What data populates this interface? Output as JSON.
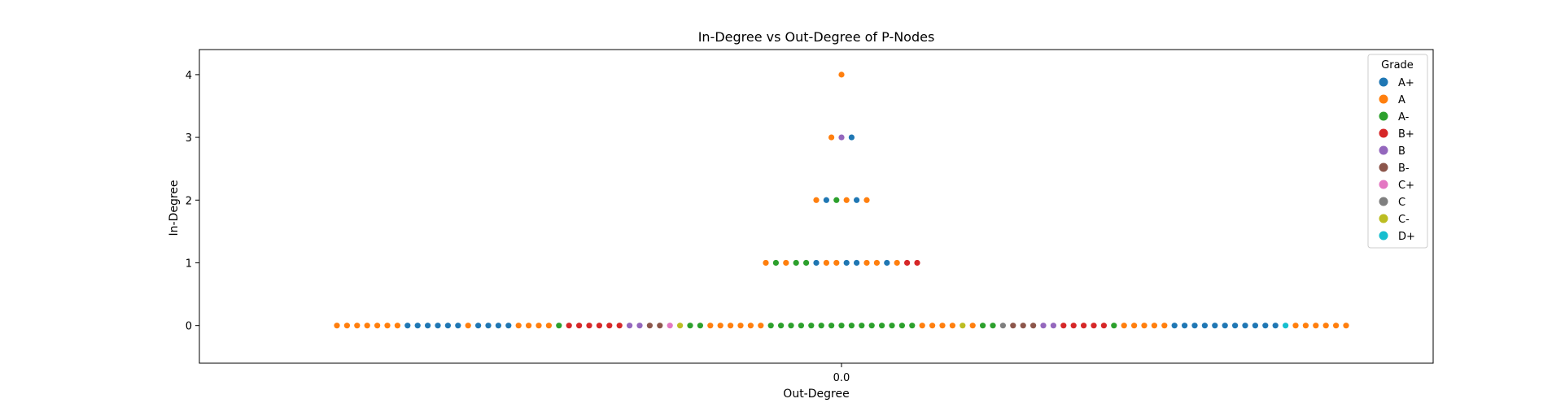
{
  "chart_data": {
    "type": "scatter",
    "title": "In-Degree vs Out-Degree of P-Nodes",
    "xlabel": "Out-Degree",
    "ylabel": "In-Degree",
    "x_ticks": [
      "0.0"
    ],
    "y_ticks": [
      0,
      1,
      2,
      3,
      4
    ],
    "ylim": [
      -0.6,
      4.4
    ],
    "legend": {
      "title": "Grade",
      "placement": "top-right",
      "entries": [
        {
          "label": "A+",
          "color": "#1f77b4"
        },
        {
          "label": "A",
          "color": "#ff7f0e"
        },
        {
          "label": "A-",
          "color": "#2ca02c"
        },
        {
          "label": "B+",
          "color": "#d62728"
        },
        {
          "label": "B",
          "color": "#9467bd"
        },
        {
          "label": "B-",
          "color": "#8c564b"
        },
        {
          "label": "C+",
          "color": "#e377c2"
        },
        {
          "label": "C",
          "color": "#7f7f7f"
        },
        {
          "label": "C-",
          "color": "#bcbd22"
        },
        {
          "label": "D+",
          "color": "#17becf"
        }
      ]
    },
    "points_by_in_degree": [
      {
        "in_degree": 4,
        "grades": [
          "A"
        ]
      },
      {
        "in_degree": 3,
        "grades": [
          "A",
          "B",
          "A+"
        ]
      },
      {
        "in_degree": 2,
        "grades": [
          "A",
          "A+",
          "A-",
          "A",
          "A+",
          "A"
        ]
      },
      {
        "in_degree": 1,
        "grades": [
          "A",
          "A-",
          "A",
          "A-",
          "A-",
          "A+",
          "A",
          "A",
          "A+",
          "A+",
          "A",
          "A",
          "A+",
          "A",
          "B+",
          "B+"
        ]
      },
      {
        "in_degree": 0,
        "grades": [
          "A",
          "A",
          "A",
          "A",
          "A",
          "A",
          "A",
          "A+",
          "A+",
          "A+",
          "A+",
          "A+",
          "A+",
          "A",
          "A+",
          "A+",
          "A+",
          "A+",
          "A",
          "A",
          "A",
          "A",
          "A-",
          "B+",
          "B+",
          "B+",
          "B+",
          "B+",
          "B+",
          "B",
          "B",
          "B-",
          "B-",
          "C+",
          "C-",
          "A-",
          "A-",
          "A",
          "A",
          "A",
          "A",
          "A",
          "A",
          "A-",
          "A-",
          "A-",
          "A-",
          "A-",
          "A-",
          "A-",
          "A-",
          "A-",
          "A-",
          "A-",
          "A-",
          "A-",
          "A-",
          "A-",
          "A",
          "A",
          "A",
          "A",
          "C-",
          "A",
          "A-",
          "A-",
          "C",
          "B-",
          "B-",
          "B-",
          "B",
          "B",
          "B+",
          "B+",
          "B+",
          "B+",
          "B+",
          "A-",
          "A",
          "A",
          "A",
          "A",
          "A",
          "A+",
          "A+",
          "A+",
          "A+",
          "A+",
          "A+",
          "A+",
          "A+",
          "A+",
          "A+",
          "A+",
          "D+",
          "A",
          "A",
          "A",
          "A",
          "A",
          "A"
        ]
      }
    ]
  }
}
